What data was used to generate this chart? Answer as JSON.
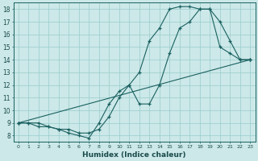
{
  "xlabel": "Humidex (Indice chaleur)",
  "background_color": "#cce8e8",
  "grid_color": "#99cccc",
  "line_color": "#1a6060",
  "xlim": [
    -0.5,
    23.5
  ],
  "ylim": [
    7.5,
    18.5
  ],
  "line1_x": [
    0,
    1,
    2,
    3,
    4,
    5,
    6,
    7,
    8,
    9,
    10,
    11,
    12,
    13,
    14,
    15,
    16,
    17,
    18,
    19,
    20,
    21,
    22,
    23
  ],
  "line1_y": [
    9,
    9,
    9,
    8.7,
    8.5,
    8.2,
    8.0,
    7.8,
    9.0,
    10.5,
    11.5,
    12.0,
    13.0,
    15.5,
    16.5,
    18.0,
    18.2,
    18.2,
    18.0,
    18.0,
    15.0,
    14.5,
    14.0,
    14.0
  ],
  "line2_x": [
    0,
    1,
    2,
    3,
    4,
    5,
    6,
    7,
    8,
    9,
    10,
    11,
    12,
    13,
    14,
    15,
    16,
    17,
    18,
    19,
    20,
    21,
    22,
    23
  ],
  "line2_y": [
    9,
    9,
    8.7,
    8.7,
    8.5,
    8.5,
    8.2,
    8.2,
    8.5,
    9.5,
    11.0,
    12.0,
    10.5,
    10.5,
    12.0,
    14.5,
    16.5,
    17.0,
    18.0,
    18.0,
    17.0,
    15.5,
    14.0,
    14.0
  ],
  "line3_x": [
    0,
    23
  ],
  "line3_y": [
    9.0,
    14.0
  ],
  "ytick_vals": [
    8,
    9,
    10,
    11,
    12,
    13,
    14,
    15,
    16,
    17,
    18
  ],
  "xtick_vals": [
    0,
    1,
    2,
    3,
    4,
    5,
    6,
    7,
    8,
    9,
    10,
    11,
    12,
    13,
    14,
    15,
    16,
    17,
    18,
    19,
    20,
    21,
    22,
    23
  ]
}
